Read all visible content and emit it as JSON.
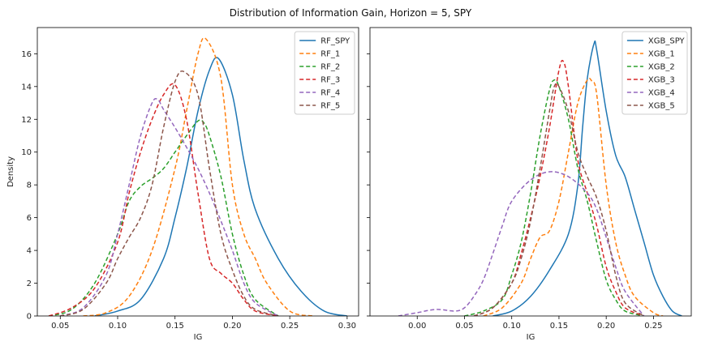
{
  "figure": {
    "title": "Distribution of Information Gain, Horizon = 5, SPY"
  },
  "chart_data": [
    {
      "type": "line",
      "subtype": "kde",
      "title": "",
      "xlabel": "IG",
      "ylabel": "Density",
      "xlim": [
        0.03,
        0.31
      ],
      "ylim": [
        0,
        17.6
      ],
      "xticks": [
        0.05,
        0.1,
        0.15,
        0.2,
        0.25,
        0.3
      ],
      "xtick_labels": [
        "0.05",
        "0.10",
        "0.15",
        "0.20",
        "0.25",
        "0.30"
      ],
      "yticks": [
        0,
        2,
        4,
        6,
        8,
        10,
        12,
        14,
        16
      ],
      "ytick_labels": [
        "0",
        "2",
        "4",
        "6",
        "8",
        "10",
        "12",
        "14",
        "16"
      ],
      "legend_position": "top-right",
      "series": [
        {
          "name": "RF_SPY",
          "color": "#1f77b4",
          "dash": "solid",
          "x": [
            0.08,
            0.1,
            0.12,
            0.14,
            0.15,
            0.16,
            0.17,
            0.18,
            0.188,
            0.2,
            0.21,
            0.22,
            0.24,
            0.26,
            0.28,
            0.3
          ],
          "y": [
            0.0,
            0.3,
            1.0,
            3.5,
            6.0,
            9.0,
            12.5,
            15.0,
            15.7,
            13.5,
            9.5,
            6.5,
            3.5,
            1.5,
            0.3,
            0.0
          ]
        },
        {
          "name": "RF_1",
          "color": "#ff7f0e",
          "dash": "dashed",
          "x": [
            0.07,
            0.09,
            0.11,
            0.13,
            0.15,
            0.16,
            0.17,
            0.177,
            0.19,
            0.2,
            0.21,
            0.22,
            0.23,
            0.25,
            0.27
          ],
          "y": [
            0.0,
            0.2,
            1.2,
            4.0,
            9.0,
            12.5,
            16.0,
            16.9,
            14.5,
            8.0,
            5.0,
            3.5,
            2.0,
            0.3,
            0.0
          ]
        },
        {
          "name": "RF_2",
          "color": "#2ca02c",
          "dash": "dashed",
          "x": [
            0.04,
            0.06,
            0.08,
            0.1,
            0.11,
            0.12,
            0.13,
            0.14,
            0.15,
            0.16,
            0.17,
            0.175,
            0.18,
            0.19,
            0.2,
            0.21,
            0.22,
            0.24
          ],
          "y": [
            0.0,
            0.4,
            2.0,
            5.0,
            7.0,
            7.9,
            8.4,
            9.0,
            10.0,
            11.0,
            11.9,
            11.8,
            11.0,
            8.5,
            5.0,
            2.5,
            1.0,
            0.0
          ]
        },
        {
          "name": "RF_3",
          "color": "#d62728",
          "dash": "dashed",
          "x": [
            0.04,
            0.06,
            0.08,
            0.1,
            0.11,
            0.12,
            0.13,
            0.14,
            0.15,
            0.16,
            0.17,
            0.18,
            0.19,
            0.2,
            0.21,
            0.22,
            0.24
          ],
          "y": [
            0.0,
            0.5,
            1.7,
            4.5,
            7.5,
            10.0,
            12.0,
            13.5,
            14.1,
            12.0,
            7.5,
            3.5,
            2.6,
            2.0,
            1.0,
            0.3,
            0.0
          ]
        },
        {
          "name": "RF_4",
          "color": "#9467bd",
          "dash": "dashed",
          "x": [
            0.05,
            0.07,
            0.09,
            0.1,
            0.11,
            0.12,
            0.13,
            0.135,
            0.14,
            0.15,
            0.16,
            0.17,
            0.18,
            0.19,
            0.2,
            0.21,
            0.22,
            0.24
          ],
          "y": [
            0.0,
            0.5,
            2.5,
            5.0,
            8.0,
            11.0,
            13.0,
            13.2,
            12.6,
            11.5,
            10.3,
            9.0,
            7.5,
            5.8,
            4.0,
            2.0,
            0.8,
            0.0
          ]
        },
        {
          "name": "RF_5",
          "color": "#8c564b",
          "dash": "dashed",
          "x": [
            0.05,
            0.07,
            0.09,
            0.1,
            0.11,
            0.12,
            0.13,
            0.14,
            0.15,
            0.158,
            0.17,
            0.18,
            0.19,
            0.2,
            0.21,
            0.22,
            0.24
          ],
          "y": [
            0.0,
            0.4,
            2.0,
            3.5,
            4.8,
            6.0,
            8.0,
            11.5,
            14.3,
            14.9,
            13.5,
            9.0,
            5.0,
            2.8,
            1.2,
            0.4,
            0.0
          ]
        }
      ]
    },
    {
      "type": "line",
      "subtype": "kde",
      "title": "",
      "xlabel": "IG",
      "ylabel": "",
      "xlim": [
        -0.05,
        0.29
      ],
      "ylim": [
        0,
        17.6
      ],
      "xticks": [
        0.0,
        0.05,
        0.1,
        0.15,
        0.2,
        0.25
      ],
      "xtick_labels": [
        "0.00",
        "0.05",
        "0.10",
        "0.15",
        "0.20",
        "0.25"
      ],
      "yticks": [
        0,
        2,
        4,
        6,
        8,
        10,
        12,
        14,
        16
      ],
      "ytick_labels": [],
      "legend_position": "top-right",
      "series": [
        {
          "name": "XGB_SPY",
          "color": "#1f77b4",
          "dash": "solid",
          "x": [
            0.08,
            0.1,
            0.12,
            0.14,
            0.16,
            0.17,
            0.175,
            0.18,
            0.187,
            0.19,
            0.2,
            0.21,
            0.22,
            0.23,
            0.24,
            0.25,
            0.26,
            0.27,
            0.28
          ],
          "y": [
            0.0,
            0.3,
            1.2,
            2.8,
            5.0,
            8.0,
            11.5,
            14.5,
            16.6,
            16.2,
            12.5,
            9.8,
            8.5,
            6.5,
            4.5,
            2.5,
            1.2,
            0.3,
            0.0
          ]
        },
        {
          "name": "XGB_1",
          "color": "#ff7f0e",
          "dash": "dashed",
          "x": [
            0.07,
            0.09,
            0.11,
            0.12,
            0.13,
            0.14,
            0.15,
            0.16,
            0.17,
            0.18,
            0.185,
            0.19,
            0.2,
            0.21,
            0.22,
            0.23,
            0.25,
            0.26
          ],
          "y": [
            0.0,
            0.5,
            2.0,
            3.5,
            4.8,
            5.2,
            7.0,
            10.0,
            13.0,
            14.4,
            14.3,
            13.5,
            8.0,
            4.5,
            2.5,
            1.2,
            0.2,
            0.0
          ]
        },
        {
          "name": "XGB_2",
          "color": "#2ca02c",
          "dash": "dashed",
          "x": [
            0.05,
            0.07,
            0.09,
            0.1,
            0.11,
            0.12,
            0.13,
            0.14,
            0.145,
            0.15,
            0.16,
            0.17,
            0.18,
            0.19,
            0.2,
            0.21,
            0.22,
            0.24
          ],
          "y": [
            0.0,
            0.3,
            1.0,
            2.5,
            4.5,
            7.5,
            11.0,
            13.8,
            14.4,
            14.0,
            12.0,
            9.0,
            7.0,
            4.5,
            2.2,
            1.0,
            0.3,
            0.0
          ]
        },
        {
          "name": "XGB_3",
          "color": "#d62728",
          "dash": "dashed",
          "x": [
            0.06,
            0.08,
            0.1,
            0.11,
            0.12,
            0.13,
            0.14,
            0.15,
            0.155,
            0.16,
            0.17,
            0.18,
            0.19,
            0.2,
            0.21,
            0.22,
            0.24
          ],
          "y": [
            0.0,
            0.5,
            2.0,
            3.8,
            6.0,
            8.5,
            11.5,
            15.0,
            15.5,
            14.0,
            9.5,
            7.5,
            5.5,
            3.0,
            1.5,
            0.5,
            0.0
          ]
        },
        {
          "name": "XGB_4",
          "color": "#9467bd",
          "dash": "dashed",
          "x": [
            -0.02,
            0.0,
            0.02,
            0.04,
            0.05,
            0.06,
            0.07,
            0.08,
            0.09,
            0.1,
            0.12,
            0.14,
            0.16,
            0.18,
            0.19,
            0.2,
            0.21,
            0.22,
            0.24
          ],
          "y": [
            0.0,
            0.2,
            0.4,
            0.3,
            0.5,
            1.2,
            2.2,
            3.8,
            5.5,
            7.0,
            8.3,
            8.8,
            8.5,
            7.5,
            6.5,
            4.8,
            3.0,
            1.5,
            0.0
          ]
        },
        {
          "name": "XGB_5",
          "color": "#8c564b",
          "dash": "dashed",
          "x": [
            0.06,
            0.08,
            0.1,
            0.11,
            0.12,
            0.13,
            0.14,
            0.145,
            0.15,
            0.16,
            0.17,
            0.18,
            0.19,
            0.2,
            0.21,
            0.22,
            0.24
          ],
          "y": [
            0.0,
            0.5,
            2.0,
            3.5,
            5.8,
            9.0,
            12.5,
            14.0,
            14.0,
            12.5,
            10.0,
            8.5,
            7.2,
            5.2,
            2.5,
            0.8,
            0.0
          ]
        }
      ]
    }
  ]
}
